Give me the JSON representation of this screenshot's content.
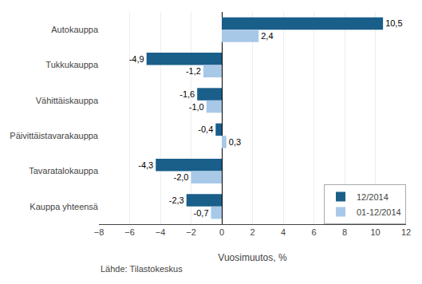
{
  "chart_data": {
    "type": "bar",
    "orientation": "horizontal",
    "categories": [
      "Autokauppa",
      "Tukkukauppa",
      "Vähittäiskauppa",
      "Päivittäistavarakauppa",
      "Tavaratalokauppa",
      "Kauppa yhteensä"
    ],
    "series": [
      {
        "name": "12/2014",
        "color": "#1a5e8a",
        "values": [
          10.5,
          -4.9,
          -1.6,
          -0.4,
          -4.3,
          -2.3
        ],
        "value_labels": [
          "10,5",
          "-4,9",
          "-1,6",
          "-0,4",
          "-4,3",
          "-2,3"
        ]
      },
      {
        "name": "01-12/2014",
        "color": "#a8c8e8",
        "values": [
          2.4,
          -1.2,
          -1.0,
          0.3,
          -2.0,
          -0.7
        ],
        "value_labels": [
          "2,4",
          "-1,2",
          "-1,0",
          "0,3",
          "-2,0",
          "-0,7"
        ]
      }
    ],
    "xlabel": "Vuosimuutos, %",
    "xlim": [
      -8,
      12
    ],
    "xticks": [
      -8,
      -6,
      -4,
      -2,
      0,
      2,
      4,
      6,
      8,
      10,
      12
    ],
    "grid": true,
    "legend": "lower right",
    "data_labels": true,
    "annotations": [
      "Lähde: Tilastokeskus"
    ]
  }
}
